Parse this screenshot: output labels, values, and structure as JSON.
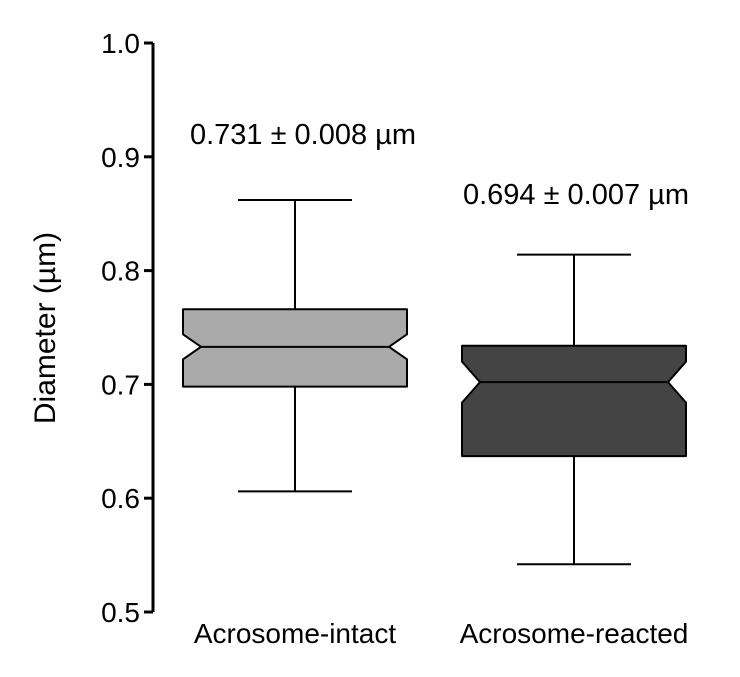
{
  "chart_data": {
    "type": "boxplot",
    "notched": true,
    "ylabel": "Diameter (µm)",
    "xlabel": "",
    "ylim": [
      0.5,
      1.0
    ],
    "yticks": [
      {
        "value": 0.5,
        "label": "0.5"
      },
      {
        "value": 0.6,
        "label": "0.6"
      },
      {
        "value": 0.7,
        "label": "0.7"
      },
      {
        "value": 0.8,
        "label": "0.8"
      },
      {
        "value": 0.9,
        "label": "0.9"
      },
      {
        "value": 1.0,
        "label": "1.0"
      }
    ],
    "grid": false,
    "categories": [
      "Acrosome-intact",
      "Acrosome-reacted"
    ],
    "boxes": [
      {
        "category": "Acrosome-intact",
        "whisker_low": 0.606,
        "q1": 0.698,
        "notch_low": 0.722,
        "median": 0.733,
        "notch_high": 0.744,
        "q3": 0.766,
        "whisker_high": 0.862,
        "color": "#aaaaaa",
        "annotation": "0.731 ± 0.008 µm"
      },
      {
        "category": "Acrosome-reacted",
        "whisker_low": 0.542,
        "q1": 0.637,
        "notch_low": 0.684,
        "median": 0.702,
        "notch_high": 0.72,
        "q3": 0.734,
        "whisker_high": 0.814,
        "color": "#444444",
        "annotation": "0.694 ± 0.007 µm"
      }
    ]
  }
}
